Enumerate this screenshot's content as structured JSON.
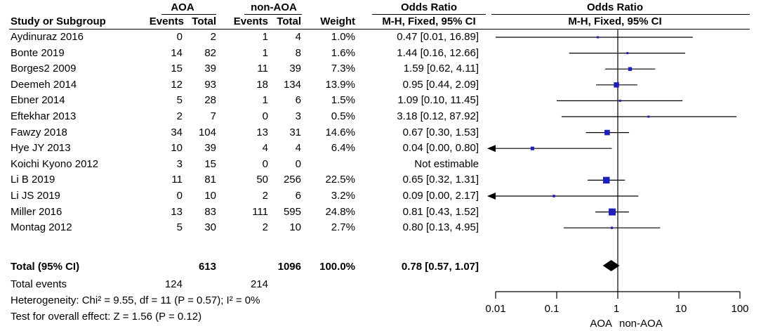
{
  "header": {
    "study_label": "Study or Subgroup",
    "group1_name": "AOA",
    "group2_name": "non-AOA",
    "events_label": "Events",
    "total_label": "Total",
    "weight_label": "Weight",
    "or_label": "Odds Ratio",
    "method_label": "M-H, Fixed, 95% CI"
  },
  "studies": [
    {
      "name": "Aydinuraz 2016",
      "e1": "0",
      "t1": "2",
      "e2": "1",
      "t2": "4",
      "weight": "1.0%",
      "ci_text": "0.47 [0.01, 16.89]"
    },
    {
      "name": "Bonte 2019",
      "e1": "14",
      "t1": "82",
      "e2": "1",
      "t2": "8",
      "weight": "1.6%",
      "ci_text": "1.44 [0.16, 12.66]"
    },
    {
      "name": "Borges2 2009",
      "e1": "15",
      "t1": "39",
      "e2": "11",
      "t2": "39",
      "weight": "7.3%",
      "ci_text": "1.59 [0.62, 4.11]"
    },
    {
      "name": "Deemeh 2014",
      "e1": "12",
      "t1": "93",
      "e2": "18",
      "t2": "134",
      "weight": "13.9%",
      "ci_text": "0.95 [0.44, 2.09]"
    },
    {
      "name": "Ebner 2014",
      "e1": "5",
      "t1": "28",
      "e2": "1",
      "t2": "6",
      "weight": "1.5%",
      "ci_text": "1.09 [0.10, 11.45]"
    },
    {
      "name": "Eftekhar 2013",
      "e1": "2",
      "t1": "7",
      "e2": "0",
      "t2": "3",
      "weight": "0.5%",
      "ci_text": "3.18 [0.12, 87.92]"
    },
    {
      "name": "Fawzy 2018",
      "e1": "34",
      "t1": "104",
      "e2": "13",
      "t2": "31",
      "weight": "14.6%",
      "ci_text": "0.67 [0.30, 1.53]"
    },
    {
      "name": "Hye JY 2013",
      "e1": "10",
      "t1": "39",
      "e2": "4",
      "t2": "4",
      "weight": "6.4%",
      "ci_text": "0.04 [0.00, 0.80]"
    },
    {
      "name": "Koichi Kyono 2012",
      "e1": "3",
      "t1": "15",
      "e2": "0",
      "t2": "0",
      "weight": "",
      "ci_text": "Not estimable"
    },
    {
      "name": "Li B 2019",
      "e1": "11",
      "t1": "81",
      "e2": "50",
      "t2": "256",
      "weight": "22.5%",
      "ci_text": "0.65 [0.32, 1.31]"
    },
    {
      "name": "Li JS 2019",
      "e1": "0",
      "t1": "10",
      "e2": "2",
      "t2": "6",
      "weight": "3.2%",
      "ci_text": "0.09 [0.00, 2.17]"
    },
    {
      "name": "Miller 2016",
      "e1": "13",
      "t1": "83",
      "e2": "111",
      "t2": "595",
      "weight": "24.8%",
      "ci_text": "0.81 [0.43, 1.52]"
    },
    {
      "name": "Montag 2012",
      "e1": "5",
      "t1": "30",
      "e2": "2",
      "t2": "10",
      "weight": "2.7%",
      "ci_text": "0.80 [0.13, 4.95]"
    }
  ],
  "total": {
    "label": "Total (95% CI)",
    "t1": "613",
    "t2": "1096",
    "weight": "100.0%",
    "ci_text": "0.78 [0.57, 1.07]"
  },
  "total_events": {
    "label": "Total events",
    "e1": "124",
    "e2": "214"
  },
  "heterogeneity": "Heterogeneity: Chi² = 9.55, df = 11 (P = 0.57); I² = 0%",
  "overall_test": "Test for overall effect: Z = 1.56 (P = 0.12)",
  "axis": {
    "ticks": [
      0.01,
      0.1,
      1,
      10,
      100
    ],
    "tick_labels": [
      "0.01",
      "0.1",
      "1",
      "10",
      "100"
    ],
    "favours_left": "AOA",
    "favours_right": "non-AOA"
  },
  "colors": {
    "marker": "#1f1fbf",
    "line": "#000000",
    "diamond": "#000000"
  },
  "chart_data": {
    "type": "forest",
    "title": "Odds Ratio",
    "subtitle": "M-H, Fixed, 95% CI",
    "scale": "log",
    "xlim": [
      0.01,
      100
    ],
    "reference": 1,
    "studies": [
      {
        "name": "Aydinuraz 2016",
        "or": 0.47,
        "lo": 0.01,
        "hi": 16.89,
        "weight": 1.0
      },
      {
        "name": "Bonte 2019",
        "or": 1.44,
        "lo": 0.16,
        "hi": 12.66,
        "weight": 1.6
      },
      {
        "name": "Borges2 2009",
        "or": 1.59,
        "lo": 0.62,
        "hi": 4.11,
        "weight": 7.3
      },
      {
        "name": "Deemeh 2014",
        "or": 0.95,
        "lo": 0.44,
        "hi": 2.09,
        "weight": 13.9
      },
      {
        "name": "Ebner 2014",
        "or": 1.09,
        "lo": 0.1,
        "hi": 11.45,
        "weight": 1.5
      },
      {
        "name": "Eftekhar 2013",
        "or": 3.18,
        "lo": 0.12,
        "hi": 87.92,
        "weight": 0.5
      },
      {
        "name": "Fawzy 2018",
        "or": 0.67,
        "lo": 0.3,
        "hi": 1.53,
        "weight": 14.6
      },
      {
        "name": "Hye JY 2013",
        "or": 0.04,
        "lo": 0.0,
        "hi": 0.8,
        "weight": 6.4
      },
      {
        "name": "Koichi Kyono 2012",
        "or": null,
        "lo": null,
        "hi": null,
        "weight": null
      },
      {
        "name": "Li B 2019",
        "or": 0.65,
        "lo": 0.32,
        "hi": 1.31,
        "weight": 22.5
      },
      {
        "name": "Li JS 2019",
        "or": 0.09,
        "lo": 0.0,
        "hi": 2.17,
        "weight": 3.2
      },
      {
        "name": "Miller 2016",
        "or": 0.81,
        "lo": 0.43,
        "hi": 1.52,
        "weight": 24.8
      },
      {
        "name": "Montag 2012",
        "or": 0.8,
        "lo": 0.13,
        "hi": 4.95,
        "weight": 2.7
      }
    ],
    "pooled": {
      "or": 0.78,
      "lo": 0.57,
      "hi": 1.07
    }
  }
}
